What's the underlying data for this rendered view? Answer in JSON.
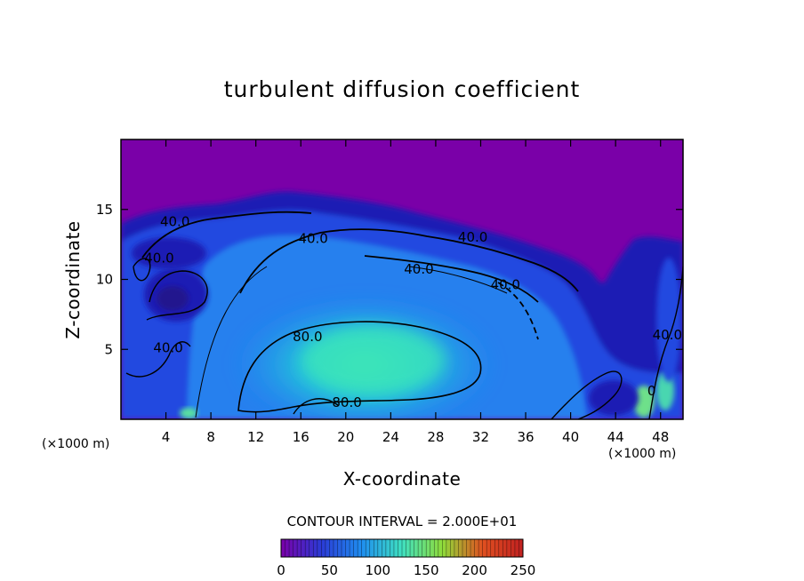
{
  "chart_data": {
    "type": "heatmap",
    "title": "turbulent diffusion coefficient",
    "xlabel": "X-coordinate",
    "ylabel": "Z-coordinate",
    "x_unit_left": "(×1000 m)",
    "x_unit_right": "(×1000 m)",
    "xlim": [
      0,
      50
    ],
    "ylim": [
      0,
      20
    ],
    "x_ticks": [
      4,
      8,
      12,
      16,
      20,
      24,
      28,
      32,
      36,
      40,
      44,
      48
    ],
    "y_ticks": [
      5,
      10,
      15
    ],
    "contour_interval_text": "CONTOUR INTERVAL = 2.000E+01",
    "contour_labels": [
      {
        "text": "40.0",
        "x": 4.8,
        "y": 13.8
      },
      {
        "text": "40.0",
        "x": 3.4,
        "y": 11.2
      },
      {
        "text": "40.0",
        "x": 17.1,
        "y": 12.6
      },
      {
        "text": "40.0",
        "x": 31.3,
        "y": 12.7
      },
      {
        "text": "40.0",
        "x": 26.5,
        "y": 10.4
      },
      {
        "text": "40.0",
        "x": 34.2,
        "y": 9.3
      },
      {
        "text": "40.0",
        "x": 4.2,
        "y": 4.8
      },
      {
        "text": "40.0",
        "x": 48.6,
        "y": 5.7
      },
      {
        "text": "80.0",
        "x": 16.6,
        "y": 5.6
      },
      {
        "text": "80.0",
        "x": 20.1,
        "y": 0.9
      },
      {
        "text": "0",
        "x": 47.2,
        "y": 1.7
      }
    ],
    "colorbar": {
      "min": 0,
      "max": 250,
      "ticks": [
        0,
        50,
        100,
        150,
        200,
        250
      ],
      "colors": [
        "#7a00a8",
        "#2b3bd6",
        "#1f8ef0",
        "#3fe0c0",
        "#8fdc3a",
        "#e05020",
        "#c02020"
      ]
    },
    "background_color": "#7a00a8",
    "grid": false
  }
}
